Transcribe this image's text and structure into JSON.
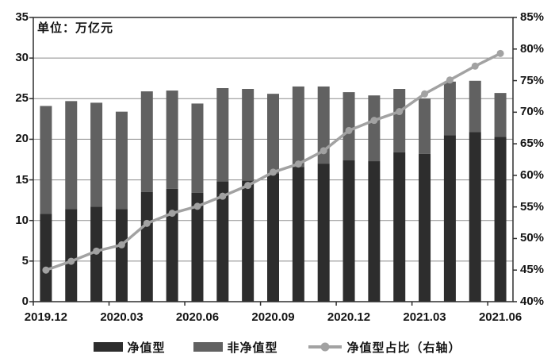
{
  "chart_data": {
    "type": "bar",
    "subtype": "stacked-bars-with-line-on-secondary-axis",
    "unit_note": "单位：万亿元",
    "categories": [
      "2019.12",
      "2020.01",
      "2020.02",
      "2020.03",
      "2020.04",
      "2020.05",
      "2020.06",
      "2020.07",
      "2020.08",
      "2020.09",
      "2020.10",
      "2020.11",
      "2020.12",
      "2021.01",
      "2021.02",
      "2021.03",
      "2021.04",
      "2021.05",
      "2021.06"
    ],
    "x_tick_labels": [
      "2019.12",
      "2020.03",
      "2020.06",
      "2020.09",
      "2020.12",
      "2021.03",
      "2021.06"
    ],
    "x_tick_category_indexes": [
      0,
      3,
      6,
      9,
      12,
      15,
      18
    ],
    "series": [
      {
        "name": "净值型",
        "type": "bar-stack",
        "axis": "left",
        "color": "#2d2d2d",
        "values": [
          10.8,
          11.4,
          11.7,
          11.4,
          13.5,
          13.9,
          13.4,
          14.8,
          14.9,
          15.8,
          16.6,
          17.0,
          17.4,
          17.3,
          18.4,
          18.2,
          20.5,
          20.9,
          20.3
        ]
      },
      {
        "name": "非净值型",
        "type": "bar-stack",
        "axis": "left",
        "color": "#616161",
        "values": [
          13.3,
          13.3,
          12.8,
          12.0,
          12.4,
          12.1,
          11.0,
          11.5,
          11.3,
          9.8,
          9.9,
          9.5,
          8.4,
          8.1,
          7.8,
          6.8,
          6.6,
          6.3,
          5.4
        ]
      },
      {
        "name": "净值型占比（右轴）",
        "type": "line",
        "axis": "right",
        "color": "#a2a2a2",
        "values": [
          45.0,
          46.4,
          48.0,
          49.0,
          52.4,
          54.0,
          55.1,
          56.7,
          58.4,
          60.5,
          61.8,
          63.9,
          67.1,
          68.7,
          70.1,
          72.9,
          75.1,
          77.3,
          79.3
        ]
      }
    ],
    "bar_totals": [
      24.1,
      24.7,
      24.5,
      23.4,
      25.9,
      26.0,
      24.4,
      26.3,
      26.2,
      25.6,
      26.5,
      26.5,
      25.8,
      25.4,
      26.2,
      25.0,
      27.1,
      27.2,
      25.7
    ],
    "left_axis": {
      "min": 0,
      "max": 35,
      "step": 5,
      "tick_labels": [
        "0",
        "5",
        "10",
        "15",
        "20",
        "25",
        "30",
        "35"
      ]
    },
    "right_axis": {
      "min": 40,
      "max": 85,
      "step": 5,
      "tick_labels": [
        "40%",
        "45%",
        "50%",
        "55%",
        "60%",
        "65%",
        "70%",
        "75%",
        "80%",
        "85%"
      ]
    },
    "grid": "horizontal-only",
    "legend_position": "bottom-center",
    "colors": {
      "frame": "#2e2e2e",
      "gridline": "#8c8c8c",
      "background": "#ffffff",
      "text": "#141414"
    }
  }
}
